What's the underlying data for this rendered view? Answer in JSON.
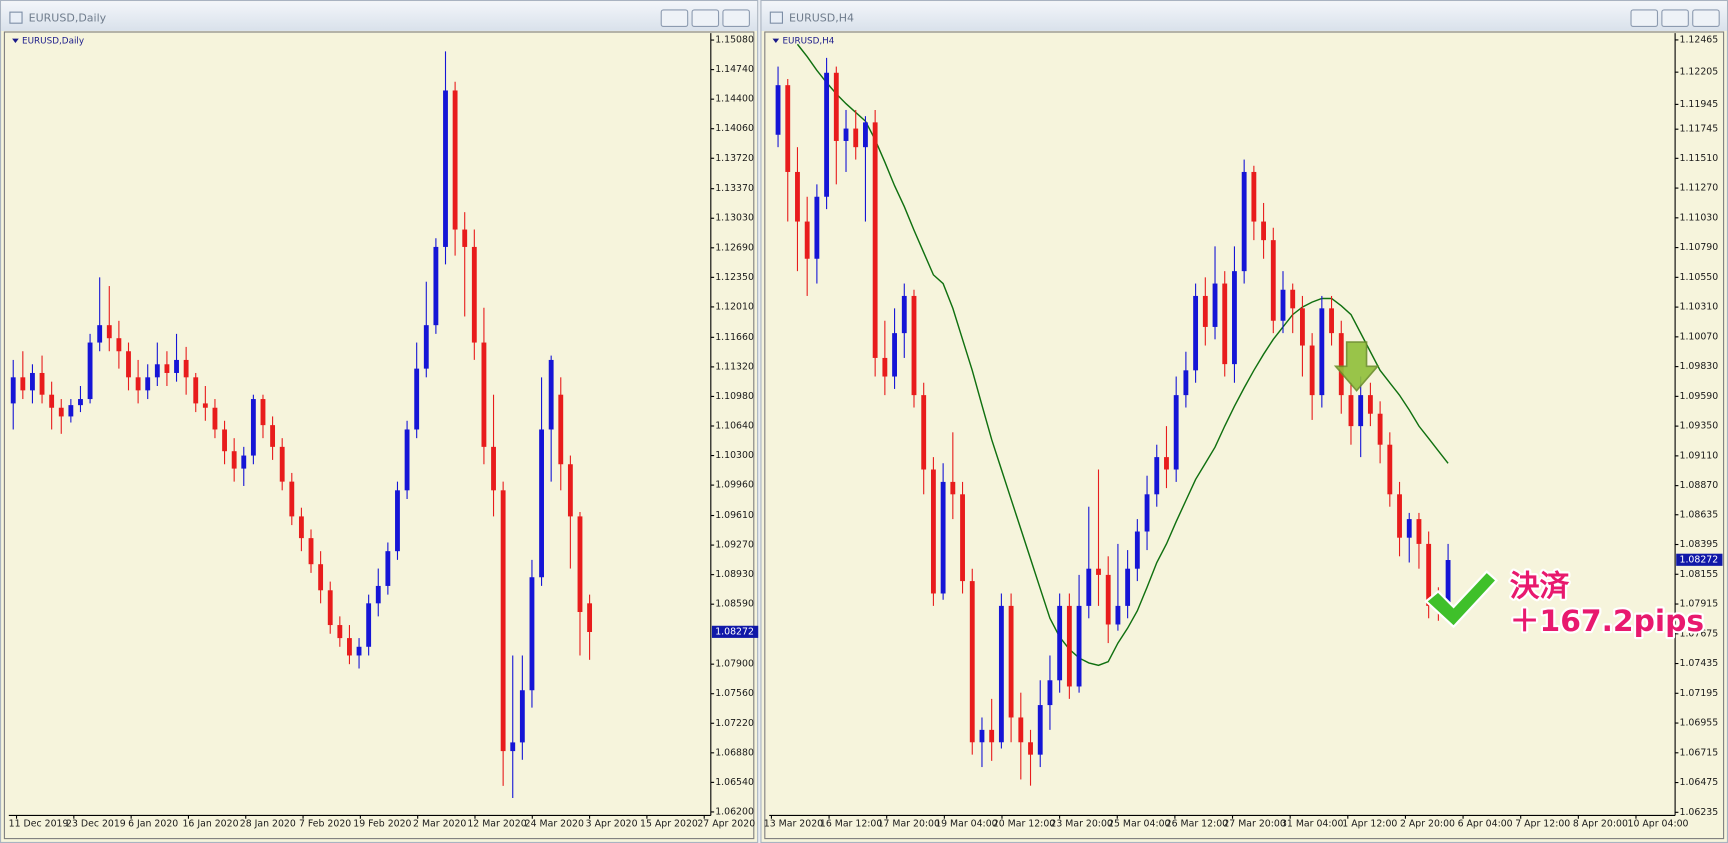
{
  "chart_data": [
    {
      "type": "candlestick",
      "window_title": "EURUSD,Daily",
      "symbol_label": "EURUSD,Daily",
      "up_color": "#1515d6",
      "down_color": "#e81c1c",
      "background": "#f6f4dc",
      "ylim": [
        1.0616,
        1.1516
      ],
      "yticks": [
        {
          "value": 1.1508,
          "label": "1.15080"
        },
        {
          "value": 1.1474,
          "label": "1.14740"
        },
        {
          "value": 1.144,
          "label": "1.14400"
        },
        {
          "value": 1.1406,
          "label": "1.14060"
        },
        {
          "value": 1.1372,
          "label": "1.13720"
        },
        {
          "value": 1.1337,
          "label": "1.13370"
        },
        {
          "value": 1.1303,
          "label": "1.13030"
        },
        {
          "value": 1.1269,
          "label": "1.12690"
        },
        {
          "value": 1.1235,
          "label": "1.12350"
        },
        {
          "value": 1.1201,
          "label": "1.12010"
        },
        {
          "value": 1.1166,
          "label": "1.11660"
        },
        {
          "value": 1.1132,
          "label": "1.11320"
        },
        {
          "value": 1.1098,
          "label": "1.10980"
        },
        {
          "value": 1.1064,
          "label": "1.10640"
        },
        {
          "value": 1.103,
          "label": "1.10300"
        },
        {
          "value": 1.0996,
          "label": "1.09960"
        },
        {
          "value": 1.0961,
          "label": "1.09610"
        },
        {
          "value": 1.0927,
          "label": "1.09270"
        },
        {
          "value": 1.0893,
          "label": "1.08930"
        },
        {
          "value": 1.0859,
          "label": "1.08590"
        },
        {
          "value": 1.079,
          "label": "1.07900"
        },
        {
          "value": 1.0756,
          "label": "1.07560"
        },
        {
          "value": 1.0722,
          "label": "1.07220"
        },
        {
          "value": 1.0688,
          "label": "1.06880"
        },
        {
          "value": 1.0654,
          "label": "1.06540"
        },
        {
          "value": 1.062,
          "label": "1.06200"
        }
      ],
      "current_price": 1.08272,
      "x_labels": [
        "11 Dec 2019",
        "23 Dec 2019",
        "6 Jan 2020",
        "16 Jan 2020",
        "28 Jan 2020",
        "7 Feb 2020",
        "19 Feb 2020",
        "2 Mar 2020",
        "12 Mar 2020",
        "24 Mar 2020",
        "3 Apr 2020",
        "15 Apr 2020",
        "27 Apr 2020"
      ],
      "open": [
        1.109,
        1.112,
        1.1105,
        1.1125,
        1.11,
        1.1085,
        1.1075,
        1.1088,
        1.1095,
        1.116,
        1.118,
        1.1165,
        1.115,
        1.112,
        1.1105,
        1.112,
        1.1135,
        1.1125,
        1.114,
        1.112,
        1.109,
        1.1085,
        1.106,
        1.1035,
        1.1015,
        1.103,
        1.1095,
        1.1065,
        1.104,
        1.1,
        1.096,
        1.0935,
        1.0905,
        1.0875,
        1.0835,
        1.082,
        1.08,
        1.081,
        1.086,
        1.088,
        1.092,
        1.099,
        1.106,
        1.113,
        1.118,
        1.127,
        1.145,
        1.129,
        1.127,
        1.116,
        1.104,
        1.099,
        1.069,
        1.07,
        1.076,
        1.089,
        1.106,
        1.11,
        1.102,
        1.096,
        1.086
      ],
      "high": [
        1.114,
        1.115,
        1.1135,
        1.1145,
        1.1115,
        1.1095,
        1.1095,
        1.111,
        1.117,
        1.1235,
        1.1225,
        1.1185,
        1.116,
        1.114,
        1.1135,
        1.116,
        1.115,
        1.117,
        1.1155,
        1.1125,
        1.111,
        1.1095,
        1.107,
        1.105,
        1.104,
        1.11,
        1.11,
        1.1075,
        1.105,
        1.101,
        1.097,
        1.0945,
        1.092,
        1.0885,
        1.0845,
        1.0835,
        1.082,
        1.087,
        1.09,
        1.093,
        1.1,
        1.107,
        1.116,
        1.123,
        1.128,
        1.1495,
        1.146,
        1.131,
        1.129,
        1.12,
        1.11,
        1.1,
        1.08,
        1.08,
        1.091,
        1.112,
        1.1145,
        1.112,
        1.103,
        1.0965,
        1.087
      ],
      "low": [
        1.106,
        1.1095,
        1.109,
        1.109,
        1.106,
        1.1055,
        1.1068,
        1.108,
        1.109,
        1.115,
        1.115,
        1.113,
        1.1105,
        1.109,
        1.1095,
        1.111,
        1.111,
        1.1115,
        1.11,
        1.108,
        1.107,
        1.105,
        1.102,
        1.1,
        1.0995,
        1.102,
        1.105,
        1.1025,
        1.099,
        1.095,
        1.092,
        1.0895,
        1.086,
        1.0825,
        1.081,
        1.079,
        1.0785,
        1.08,
        1.0845,
        1.087,
        1.091,
        1.098,
        1.105,
        1.112,
        1.117,
        1.125,
        1.126,
        1.119,
        1.114,
        1.102,
        1.096,
        1.065,
        1.0636,
        1.068,
        1.074,
        1.088,
        1.1,
        1.099,
        1.09,
        1.08,
        1.0795
      ],
      "close": [
        1.112,
        1.1105,
        1.1125,
        1.11,
        1.1085,
        1.1075,
        1.1088,
        1.1095,
        1.116,
        1.118,
        1.1165,
        1.115,
        1.112,
        1.1105,
        1.112,
        1.1135,
        1.1125,
        1.114,
        1.112,
        1.109,
        1.1085,
        1.106,
        1.1035,
        1.1015,
        1.103,
        1.1095,
        1.1065,
        1.104,
        1.1,
        1.096,
        1.0935,
        1.0905,
        1.0875,
        1.0835,
        1.082,
        1.08,
        1.081,
        1.086,
        1.088,
        1.092,
        1.099,
        1.106,
        1.113,
        1.118,
        1.127,
        1.145,
        1.129,
        1.127,
        1.116,
        1.104,
        1.099,
        1.069,
        1.07,
        1.076,
        1.089,
        1.106,
        1.114,
        1.102,
        1.096,
        1.085,
        1.0827
      ]
    },
    {
      "type": "candlestick",
      "window_title": "EURUSD,H4",
      "symbol_label": "EURUSD,H4",
      "up_color": "#1515d6",
      "down_color": "#e81c1c",
      "ma_color": "#107010",
      "background": "#f6f4dc",
      "ylim": [
        1.0621,
        1.1252
      ],
      "yticks": [
        {
          "value": 1.12465,
          "label": "1.12465"
        },
        {
          "value": 1.12205,
          "label": "1.12205"
        },
        {
          "value": 1.11945,
          "label": "1.11945"
        },
        {
          "value": 1.11745,
          "label": "1.11745"
        },
        {
          "value": 1.1151,
          "label": "1.11510"
        },
        {
          "value": 1.1127,
          "label": "1.11270"
        },
        {
          "value": 1.1103,
          "label": "1.11030"
        },
        {
          "value": 1.1079,
          "label": "1.10790"
        },
        {
          "value": 1.1055,
          "label": "1.10550"
        },
        {
          "value": 1.1031,
          "label": "1.10310"
        },
        {
          "value": 1.1007,
          "label": "1.10070"
        },
        {
          "value": 1.0983,
          "label": "1.09830"
        },
        {
          "value": 1.0959,
          "label": "1.09590"
        },
        {
          "value": 1.0935,
          "label": "1.09350"
        },
        {
          "value": 1.0911,
          "label": "1.09110"
        },
        {
          "value": 1.0887,
          "label": "1.08870"
        },
        {
          "value": 1.08635,
          "label": "1.08635"
        },
        {
          "value": 1.08395,
          "label": "1.08395"
        },
        {
          "value": 1.08155,
          "label": "1.08155"
        },
        {
          "value": 1.07915,
          "label": "1.07915"
        },
        {
          "value": 1.07675,
          "label": "1.07675"
        },
        {
          "value": 1.07435,
          "label": "1.07435"
        },
        {
          "value": 1.07195,
          "label": "1.07195"
        },
        {
          "value": 1.06955,
          "label": "1.06955"
        },
        {
          "value": 1.06715,
          "label": "1.06715"
        },
        {
          "value": 1.06475,
          "label": "1.06475"
        },
        {
          "value": 1.06235,
          "label": "1.06235"
        }
      ],
      "current_price": 1.08272,
      "x_labels": [
        "13 Mar 2020",
        "16 Mar 12:00",
        "17 Mar 20:00",
        "19 Mar 04:00",
        "20 Mar 12:00",
        "23 Mar 20:00",
        "25 Mar 04:00",
        "26 Mar 12:00",
        "27 Mar 20:00",
        "31 Mar 04:00",
        "1 Apr 12:00",
        "2 Apr 20:00",
        "6 Apr 04:00",
        "7 Apr 12:00",
        "8 Apr 20:00",
        "10 Apr 04:00"
      ],
      "open": [
        1.117,
        1.121,
        1.114,
        1.11,
        1.107,
        1.112,
        1.122,
        1.1165,
        1.1175,
        1.116,
        1.118,
        1.099,
        1.0975,
        1.101,
        1.104,
        1.096,
        1.09,
        1.08,
        1.089,
        1.088,
        1.081,
        1.068,
        1.069,
        1.068,
        1.079,
        1.07,
        1.068,
        1.067,
        1.071,
        1.073,
        1.079,
        1.0725,
        1.079,
        1.082,
        1.0815,
        1.0775,
        1.079,
        1.082,
        1.085,
        1.088,
        1.091,
        1.09,
        1.096,
        1.098,
        1.104,
        1.1015,
        1.105,
        1.0985,
        1.106,
        1.114,
        1.11,
        1.1085,
        1.102,
        1.1045,
        1.103,
        1.1,
        1.096,
        1.103,
        1.101,
        1.096,
        1.0935,
        1.096,
        1.0945,
        1.092,
        1.088,
        1.0845,
        1.086,
        1.084,
        1.079,
        1.0785
      ],
      "high": [
        1.1225,
        1.1215,
        1.116,
        1.112,
        1.113,
        1.1232,
        1.1225,
        1.119,
        1.119,
        1.1185,
        1.119,
        1.102,
        1.103,
        1.105,
        1.1045,
        1.097,
        1.091,
        1.0905,
        1.093,
        1.089,
        1.082,
        1.07,
        1.0715,
        1.08,
        1.08,
        1.072,
        1.069,
        1.073,
        1.075,
        1.08,
        1.08,
        1.0815,
        1.087,
        1.09,
        1.083,
        1.084,
        1.0835,
        1.086,
        1.0895,
        1.092,
        1.0935,
        1.0975,
        1.0995,
        1.105,
        1.1055,
        1.108,
        1.106,
        1.108,
        1.115,
        1.1145,
        1.1115,
        1.1095,
        1.106,
        1.105,
        1.104,
        1.101,
        1.104,
        1.104,
        1.102,
        1.097,
        1.0975,
        1.097,
        1.0955,
        1.093,
        1.089,
        1.0865,
        1.0865,
        1.085,
        1.0805,
        1.084
      ],
      "low": [
        1.116,
        1.11,
        1.106,
        1.104,
        1.105,
        1.111,
        1.113,
        1.114,
        1.115,
        1.11,
        1.0975,
        1.096,
        1.0965,
        1.099,
        1.095,
        1.088,
        1.079,
        1.0795,
        1.086,
        1.08,
        1.067,
        1.066,
        1.0665,
        1.0675,
        1.068,
        1.065,
        1.0645,
        1.066,
        1.069,
        1.072,
        1.0715,
        1.072,
        1.078,
        1.079,
        1.076,
        1.077,
        1.078,
        1.081,
        1.0835,
        1.087,
        1.0885,
        1.089,
        1.095,
        1.097,
        1.1,
        1.1005,
        1.0975,
        1.097,
        1.105,
        1.1085,
        1.107,
        1.101,
        1.101,
        1.101,
        1.0975,
        1.094,
        1.095,
        1.1,
        1.0945,
        1.092,
        1.091,
        1.0935,
        1.0905,
        1.087,
        1.083,
        1.0825,
        1.082,
        1.078,
        1.0778,
        1.078
      ],
      "close": [
        1.121,
        1.114,
        1.11,
        1.107,
        1.112,
        1.122,
        1.1165,
        1.1175,
        1.116,
        1.118,
        1.099,
        1.0975,
        1.101,
        1.104,
        1.096,
        1.09,
        1.08,
        1.089,
        1.088,
        1.081,
        1.068,
        1.069,
        1.068,
        1.079,
        1.07,
        1.068,
        1.067,
        1.071,
        1.073,
        1.079,
        1.0725,
        1.079,
        1.082,
        1.0815,
        1.0775,
        1.079,
        1.082,
        1.085,
        1.088,
        1.091,
        1.09,
        1.096,
        1.098,
        1.104,
        1.1015,
        1.105,
        1.0985,
        1.106,
        1.114,
        1.11,
        1.1085,
        1.102,
        1.1045,
        1.103,
        1.1,
        1.096,
        1.103,
        1.101,
        1.096,
        1.0935,
        1.096,
        1.0945,
        1.092,
        1.088,
        1.0845,
        1.086,
        1.084,
        1.079,
        1.0785,
        1.0827
      ],
      "ma": [
        null,
        null,
        1.1243,
        1.1233,
        1.1222,
        1.1212,
        1.1203,
        1.1195,
        1.1188,
        1.1181,
        1.1166,
        1.1148,
        1.1129,
        1.1112,
        1.1093,
        1.1075,
        1.1057,
        1.105,
        1.103,
        1.1005,
        1.098,
        1.0952,
        1.0924,
        1.09,
        1.0876,
        1.0852,
        1.0828,
        1.0804,
        1.078,
        1.0765,
        1.0755,
        1.0748,
        1.0744,
        1.0742,
        1.0745,
        1.076,
        1.0772,
        1.0786,
        1.0805,
        1.0825,
        1.084,
        1.0858,
        1.0875,
        1.0892,
        1.0905,
        1.0918,
        1.0935,
        1.0951,
        1.0966,
        1.098,
        1.0993,
        1.1005,
        1.1015,
        1.1025,
        1.1031,
        1.1035,
        1.1038,
        1.1038,
        1.1032,
        1.1025,
        1.101,
        1.0995,
        1.098,
        1.097,
        1.096,
        1.0948,
        1.0935,
        1.0925,
        1.0915,
        1.0905
      ],
      "annotations": [
        "決済",
        "＋167.2pips"
      ]
    }
  ]
}
